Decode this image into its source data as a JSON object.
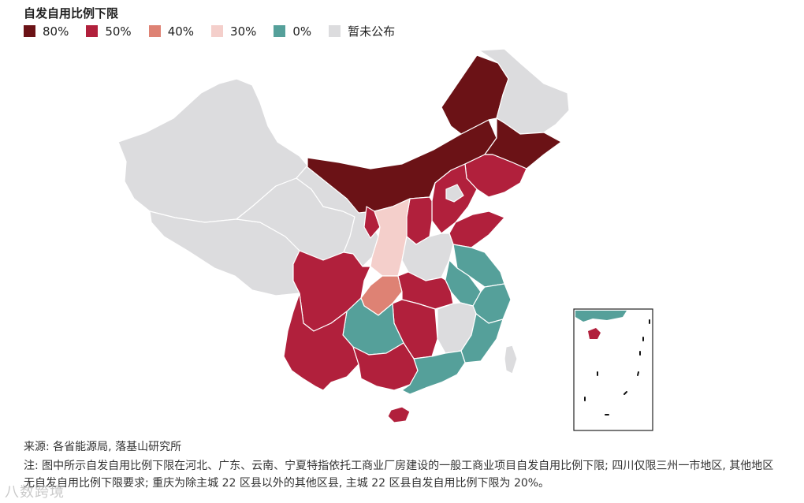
{
  "legend": {
    "title": "自发自用比例下限",
    "items": [
      {
        "label": "80%",
        "color": "#6b1216"
      },
      {
        "label": "50%",
        "color": "#b1203c"
      },
      {
        "label": "40%",
        "color": "#de8274"
      },
      {
        "label": "30%",
        "color": "#f4cfcb"
      },
      {
        "label": "0%",
        "color": "#55a09a"
      },
      {
        "label": "暂未公布",
        "color": "#dcdcde"
      }
    ]
  },
  "source": "来源: 各省能源局, 落基山研究所",
  "note": "注: 图中所示自发自用比例下限在河北、广东、云南、宁夏特指依托工商业厂房建设的一般工商业项目自发自用比例下限; 四川仅限三州一市地区, 其他地区无自发自用比例下限要求; 重庆为除主城 22 区县以外的其他区县, 主城 22 区县自发自用比例下限为 20%。",
  "watermark": "八数跨境"
}
